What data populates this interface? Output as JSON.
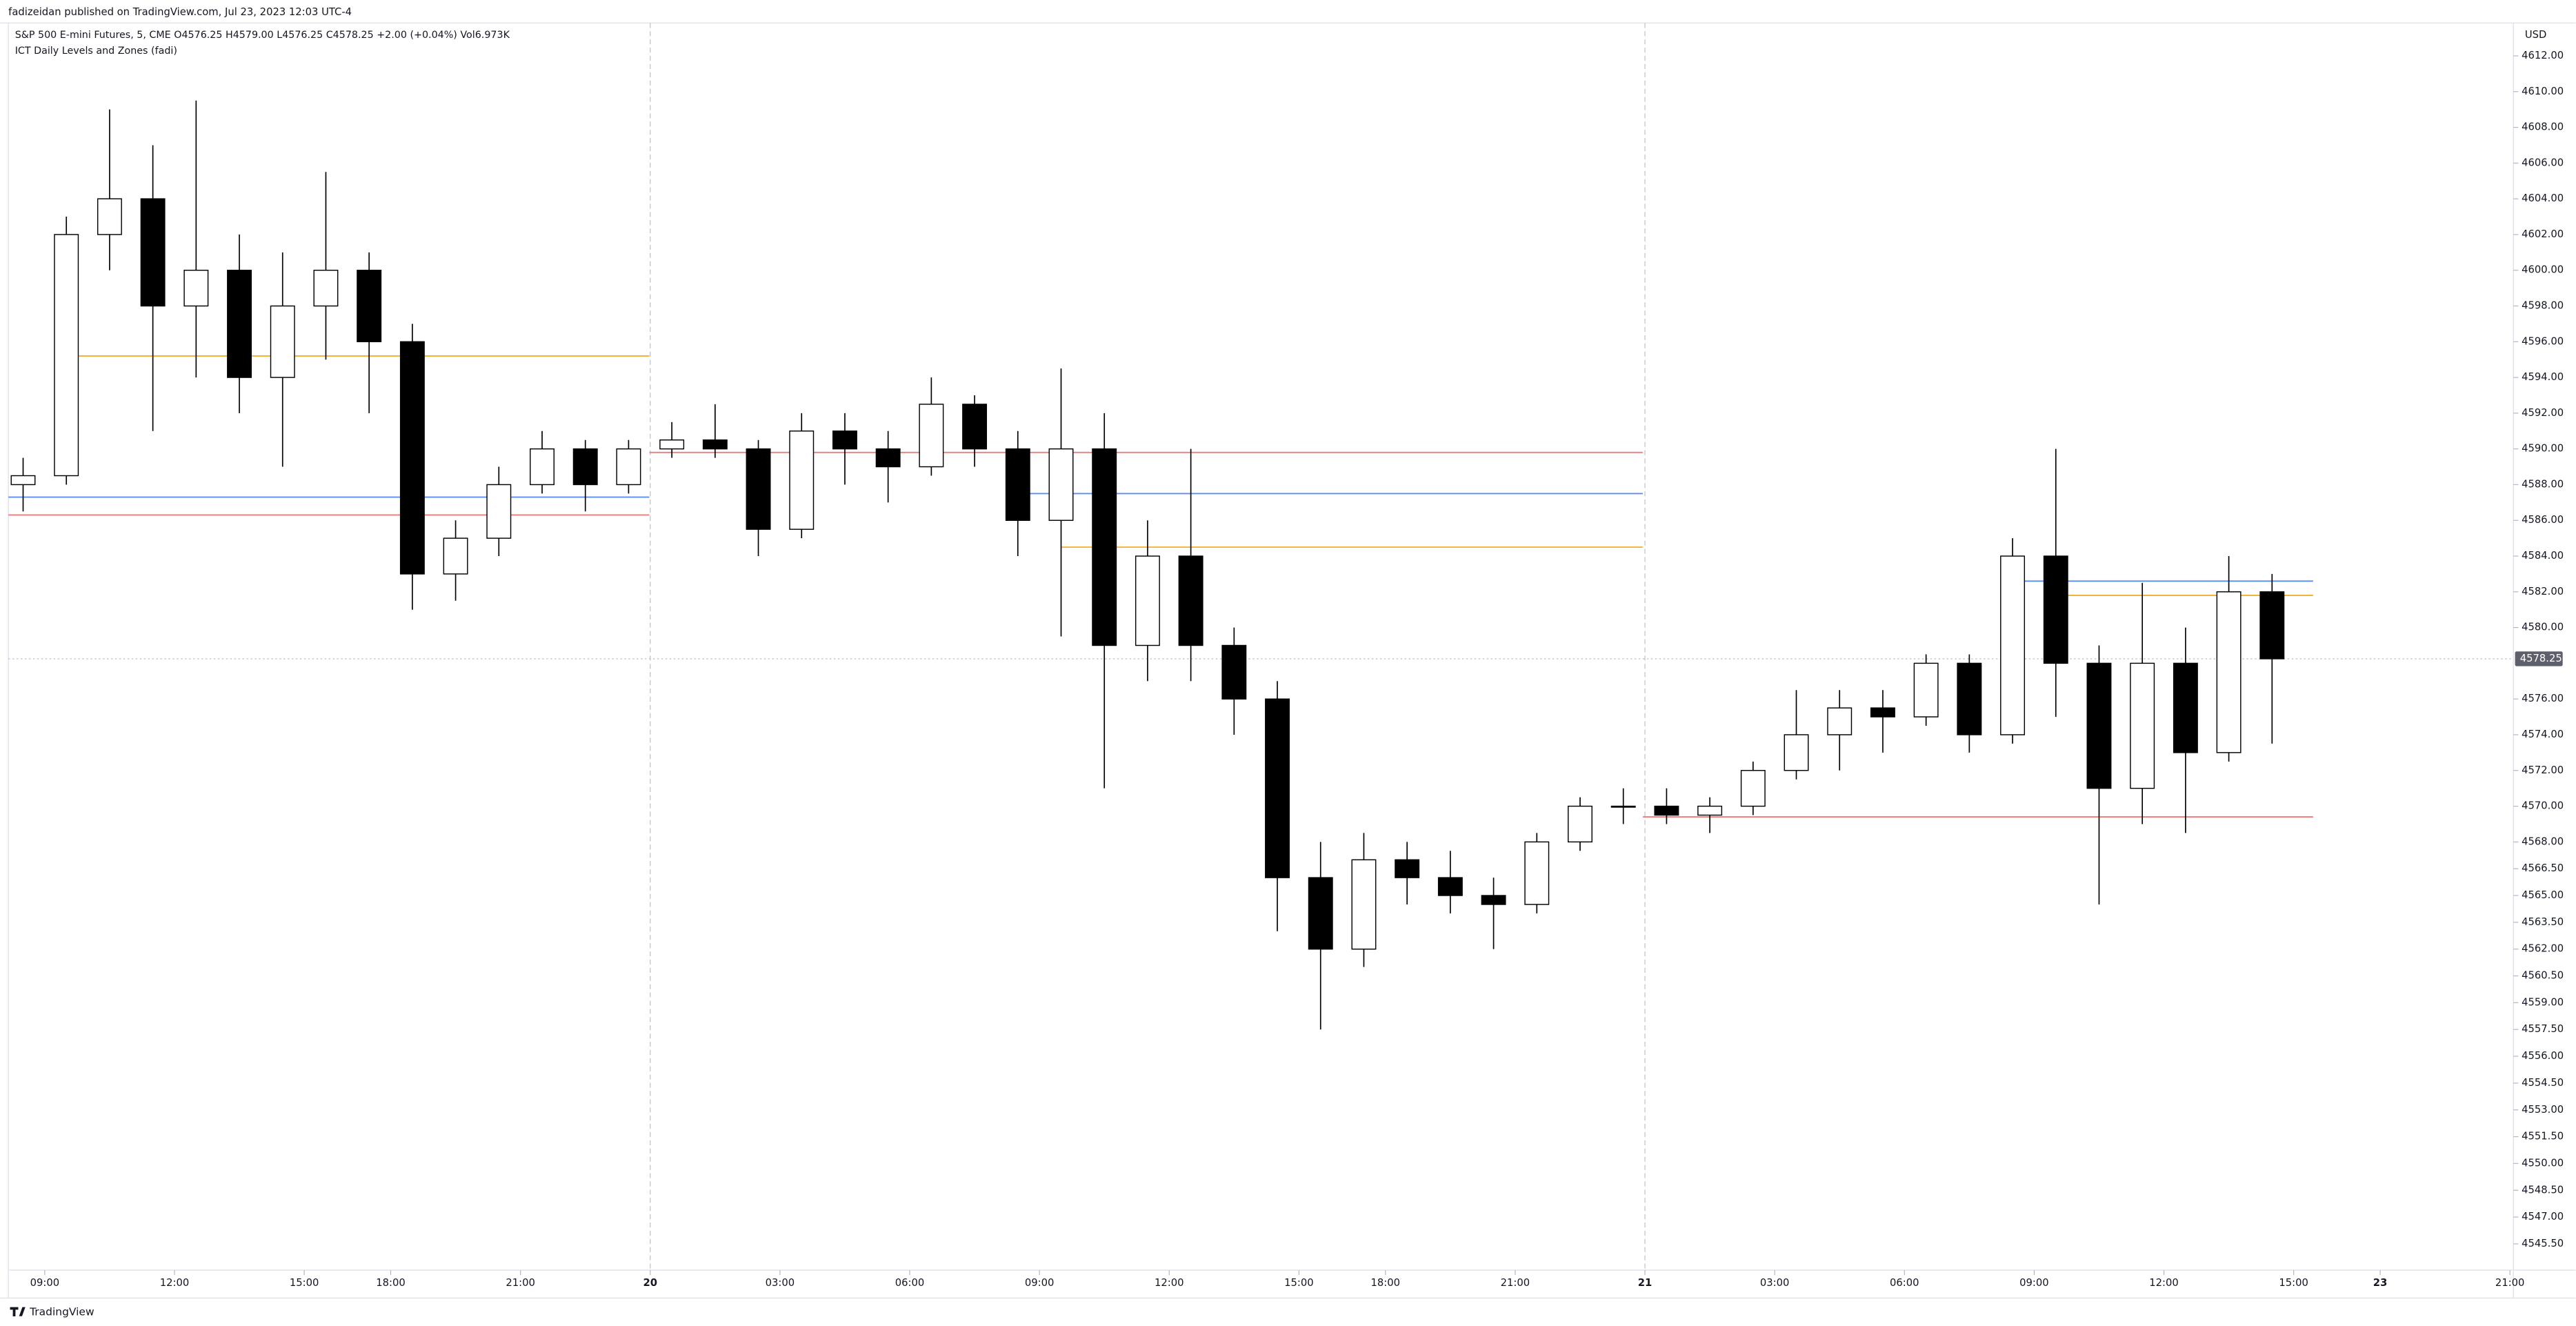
{
  "header": {
    "attribution": "fadizeidan published on TradingView.com, Jul 23, 2023 12:03 UTC-4",
    "brand": "TradingView"
  },
  "chart_data": {
    "type": "candlestick",
    "title": "S&P 500 E-mini Futures, 5, CME  O4576.25  H4579.00  L4576.25  C4578.25  +2.00 (+0.04%)  Vol6.973K",
    "subtitle": "ICT Daily Levels and Zones (fadi)",
    "y_unit": "USD",
    "x": [
      -0.5,
      0.5,
      1.5,
      2.5,
      3.5,
      4.5,
      5.5,
      6.5,
      7.5,
      8.5,
      9.5,
      10.5,
      11.5,
      12.5,
      13.5,
      14.5,
      15.5,
      16.5,
      17.5,
      18.5,
      19.5,
      20.5,
      21.5,
      22.5,
      23.5,
      24.5,
      25.5,
      26.5,
      27.5,
      28.5,
      29.5,
      30.5,
      31.5,
      32.5,
      33.5,
      34.5,
      35.5,
      36.5,
      37.5,
      38.5,
      39.5,
      40.5,
      41.5,
      42.5,
      43.5,
      44.5,
      45.5,
      46.5,
      47.5,
      48.5,
      49.5,
      50.5,
      51.5
    ],
    "open": [
      4588,
      4588.5,
      4602,
      4604,
      4598,
      4600,
      4594,
      4598,
      4600,
      4596,
      4583,
      4585,
      4588,
      4590,
      4588,
      4590,
      4590.5,
      4590,
      4585.5,
      4591,
      4590,
      4589,
      4592.5,
      4590,
      4586,
      4590,
      4579,
      4584,
      4579,
      4576,
      4566,
      4562,
      4567,
      4566,
      4565,
      4564.5,
      4568,
      4570,
      4570,
      4569.5,
      4570,
      4572,
      4574,
      4575.5,
      4575,
      4578,
      4574,
      4584,
      4578,
      4571,
      4578,
      4573,
      4582
    ],
    "high": [
      4589.5,
      4603,
      4609,
      4607,
      4609.5,
      4602,
      4601,
      4605.5,
      4601,
      4597,
      4586,
      4589,
      4591,
      4590.5,
      4590.5,
      4591.5,
      4592.5,
      4590.5,
      4592,
      4592,
      4591,
      4594,
      4593,
      4591,
      4594.5,
      4592,
      4586,
      4590,
      4580,
      4577,
      4568,
      4568.5,
      4568,
      4567.5,
      4566,
      4568.5,
      4570.5,
      4571,
      4571,
      4570.5,
      4572.5,
      4576.5,
      4576.5,
      4576.5,
      4578.5,
      4578.5,
      4585,
      4590,
      4579,
      4582.5,
      4580,
      4584,
      4583
    ],
    "low": [
      4586.5,
      4588,
      4600,
      4591,
      4594,
      4592,
      4589,
      4595,
      4592,
      4581,
      4581.5,
      4584,
      4587.5,
      4586.5,
      4587.5,
      4589.5,
      4589.5,
      4584,
      4585,
      4588,
      4587,
      4588.5,
      4589,
      4584,
      4579.5,
      4571,
      4577,
      4577,
      4574,
      4563,
      4557.5,
      4561,
      4564.5,
      4564,
      4562,
      4564,
      4567.5,
      4569,
      4569,
      4568.5,
      4569.5,
      4571.5,
      4572,
      4573,
      4574.5,
      4573,
      4573.5,
      4575,
      4564.5,
      4569,
      4568.5,
      4572.5,
      4573.5
    ],
    "close": [
      4588.5,
      4602,
      4604,
      4598,
      4600,
      4594,
      4598,
      4600,
      4596,
      4583,
      4585,
      4588,
      4590,
      4588,
      4590,
      4590.5,
      4590,
      4585.5,
      4591,
      4590,
      4589,
      4592.5,
      4590,
      4586,
      4590,
      4579,
      4584,
      4579,
      4576,
      4566,
      4562,
      4567,
      4566,
      4565,
      4564.5,
      4568,
      4570,
      4570,
      4569.5,
      4570,
      4572,
      4574,
      4575.5,
      4575,
      4578,
      4574,
      4584,
      4578,
      4571,
      4578,
      4573,
      4582,
      4578.25
    ],
    "levels": [
      {
        "color": "#f2b636",
        "price": 4595.2,
        "x": [
          0.49,
          13.98
        ]
      },
      {
        "color": "#5b8def",
        "price": 4587.3,
        "x": [
          -0.84,
          13.98
        ]
      },
      {
        "color": "#ef7b7b",
        "price": 4586.3,
        "x": [
          -0.84,
          13.98
        ]
      },
      {
        "color": "#ef7b7b",
        "price": 4589.8,
        "x": [
          13.98,
          36.95
        ]
      },
      {
        "color": "#5b8def",
        "price": 4587.5,
        "x": [
          22.5,
          36.95
        ]
      },
      {
        "color": "#f2b636",
        "price": 4584.5,
        "x": [
          23.5,
          36.95
        ]
      },
      {
        "color": "#5b8def",
        "price": 4582.6,
        "x": [
          45.3,
          52.45
        ]
      },
      {
        "color": "#f2b636",
        "price": 4581.8,
        "x": [
          46.6,
          52.45
        ]
      },
      {
        "color": "#ef7b7b",
        "price": 4569.4,
        "x": [
          36.95,
          52.45
        ]
      }
    ],
    "last_price": 4578.25,
    "day_separators": [
      14,
      37
    ],
    "xlim": [
      -0.84,
      57.08
    ],
    "xticks": [
      {
        "value": 0,
        "label": "09:00"
      },
      {
        "value": 3,
        "label": "12:00"
      },
      {
        "value": 6,
        "label": "15:00"
      },
      {
        "value": 8,
        "label": "18:00"
      },
      {
        "value": 11,
        "label": "21:00"
      },
      {
        "value": 14,
        "label": "20"
      },
      {
        "value": 17,
        "label": "03:00"
      },
      {
        "value": 20,
        "label": "06:00"
      },
      {
        "value": 23,
        "label": "09:00"
      },
      {
        "value": 26,
        "label": "12:00"
      },
      {
        "value": 29,
        "label": "15:00"
      },
      {
        "value": 31,
        "label": "18:00"
      },
      {
        "value": 34,
        "label": "21:00"
      },
      {
        "value": 37,
        "label": "21"
      },
      {
        "value": 40,
        "label": "03:00"
      },
      {
        "value": 43,
        "label": "06:00"
      },
      {
        "value": 46,
        "label": "09:00"
      },
      {
        "value": 49,
        "label": "12:00"
      },
      {
        "value": 52,
        "label": "15:00"
      },
      {
        "value": 54,
        "label": "23"
      },
      {
        "value": 57,
        "label": "21:00"
      }
    ],
    "ylim": [
      4544.03,
      4613.84
    ],
    "yticks": [
      {
        "value": 4612,
        "label": "4612.00"
      },
      {
        "value": 4610,
        "label": "4610.00"
      },
      {
        "value": 4608,
        "label": "4608.00"
      },
      {
        "value": 4606,
        "label": "4606.00"
      },
      {
        "value": 4604,
        "label": "4604.00"
      },
      {
        "value": 4602,
        "label": "4602.00"
      },
      {
        "value": 4600,
        "label": "4600.00"
      },
      {
        "value": 4598,
        "label": "4598.00"
      },
      {
        "value": 4596,
        "label": "4596.00"
      },
      {
        "value": 4594,
        "label": "4594.00"
      },
      {
        "value": 4592,
        "label": "4592.00"
      },
      {
        "value": 4590,
        "label": "4590.00"
      },
      {
        "value": 4588,
        "label": "4588.00"
      },
      {
        "value": 4586,
        "label": "4586.00"
      },
      {
        "value": 4584,
        "label": "4584.00"
      },
      {
        "value": 4582,
        "label": "4582.00"
      },
      {
        "value": 4580,
        "label": "4580.00"
      },
      {
        "value": 4576,
        "label": "4576.00"
      },
      {
        "value": 4574,
        "label": "4574.00"
      },
      {
        "value": 4572,
        "label": "4572.00"
      },
      {
        "value": 4570,
        "label": "4570.00"
      },
      {
        "value": 4568,
        "label": "4568.00"
      },
      {
        "value": 4566.5,
        "label": "4566.50"
      },
      {
        "value": 4565,
        "label": "4565.00"
      },
      {
        "value": 4563.5,
        "label": "4563.50"
      },
      {
        "value": 4562,
        "label": "4562.00"
      },
      {
        "value": 4560.5,
        "label": "4560.50"
      },
      {
        "value": 4559,
        "label": "4559.00"
      },
      {
        "value": 4557.5,
        "label": "4557.50"
      },
      {
        "value": 4556,
        "label": "4556.00"
      },
      {
        "value": 4554.5,
        "label": "4554.50"
      },
      {
        "value": 4553,
        "label": "4553.00"
      },
      {
        "value": 4551.5,
        "label": "4551.50"
      },
      {
        "value": 4550,
        "label": "4550.00"
      },
      {
        "value": 4548.5,
        "label": "4548.50"
      },
      {
        "value": 4547,
        "label": "4547.00"
      },
      {
        "value": 4545.5,
        "label": "4545.50"
      }
    ]
  }
}
